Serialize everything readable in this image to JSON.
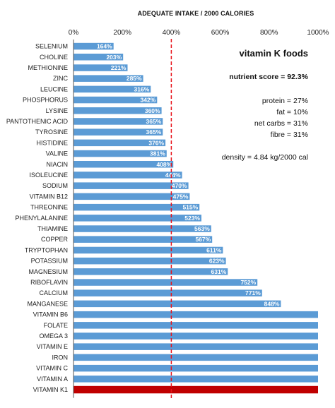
{
  "chart_data": {
    "type": "bar",
    "orientation": "horizontal",
    "title": "ADEQUATE INTAKE / 2000 CALORIES",
    "xlabel": "",
    "ylabel": "",
    "xlim": [
      0,
      1000
    ],
    "x_tick_labels": [
      "0%",
      "200%",
      "400%",
      "600%",
      "800%",
      "1000%"
    ],
    "x_ticks": [
      0,
      200,
      400,
      600,
      800,
      1000
    ],
    "reference_line": 400,
    "grid": false,
    "categories": [
      "SELENIUM",
      "CHOLINE",
      "METHIONINE",
      "ZINC",
      "LEUCINE",
      "PHOSPHORUS",
      "LYSINE",
      "PANTOTHENIC ACID",
      "TYROSINE",
      "HISTIDINE",
      "VALINE",
      "NIACIN",
      "ISOLEUCINE",
      "SODIUM",
      "VITAMIN B12",
      "THREONINE",
      "PHENYLALANINE",
      "THIAMINE",
      "COPPER",
      "TRYPTOPHAN",
      "POTASSIUM",
      "MAGNESIUM",
      "RIBOFLAVIN",
      "CALCIUM",
      "MANGANESE",
      "VITAMIN B6",
      "FOLATE",
      "OMEGA 3",
      "VITAMIN E",
      "IRON",
      "VITAMIN C",
      "VITAMIN A",
      "VITAMIN K1"
    ],
    "values": [
      164,
      203,
      221,
      285,
      316,
      342,
      360,
      365,
      365,
      376,
      381,
      408,
      444,
      470,
      475,
      515,
      523,
      563,
      567,
      611,
      623,
      631,
      752,
      771,
      848,
      1000,
      1000,
      1000,
      1000,
      1000,
      1000,
      1000,
      1000
    ],
    "data_labels": [
      "164%",
      "203%",
      "221%",
      "285%",
      "316%",
      "342%",
      "360%",
      "365%",
      "365%",
      "376%",
      "381%",
      "408%",
      "444%",
      "470%",
      "475%",
      "515%",
      "523%",
      "563%",
      "567%",
      "611%",
      "623%",
      "631%",
      "752%",
      "771%",
      "848%",
      "",
      "",
      "",
      "",
      "",
      "",
      "",
      ""
    ],
    "highlight_category": "VITAMIN K1",
    "colors": {
      "bar": "#5b9bd5",
      "highlight": "#c00000",
      "reference": "#e8141b"
    }
  },
  "side_panel": {
    "title": "vitamin K foods",
    "score": "nutrient score = 92.3%",
    "protein": "protein = 27%",
    "fat": "fat = 10%",
    "net_carbs": "net carbs = 31%",
    "fibre": "fibre = 31%",
    "density": "density = 4.84 kg/2000 cal"
  }
}
